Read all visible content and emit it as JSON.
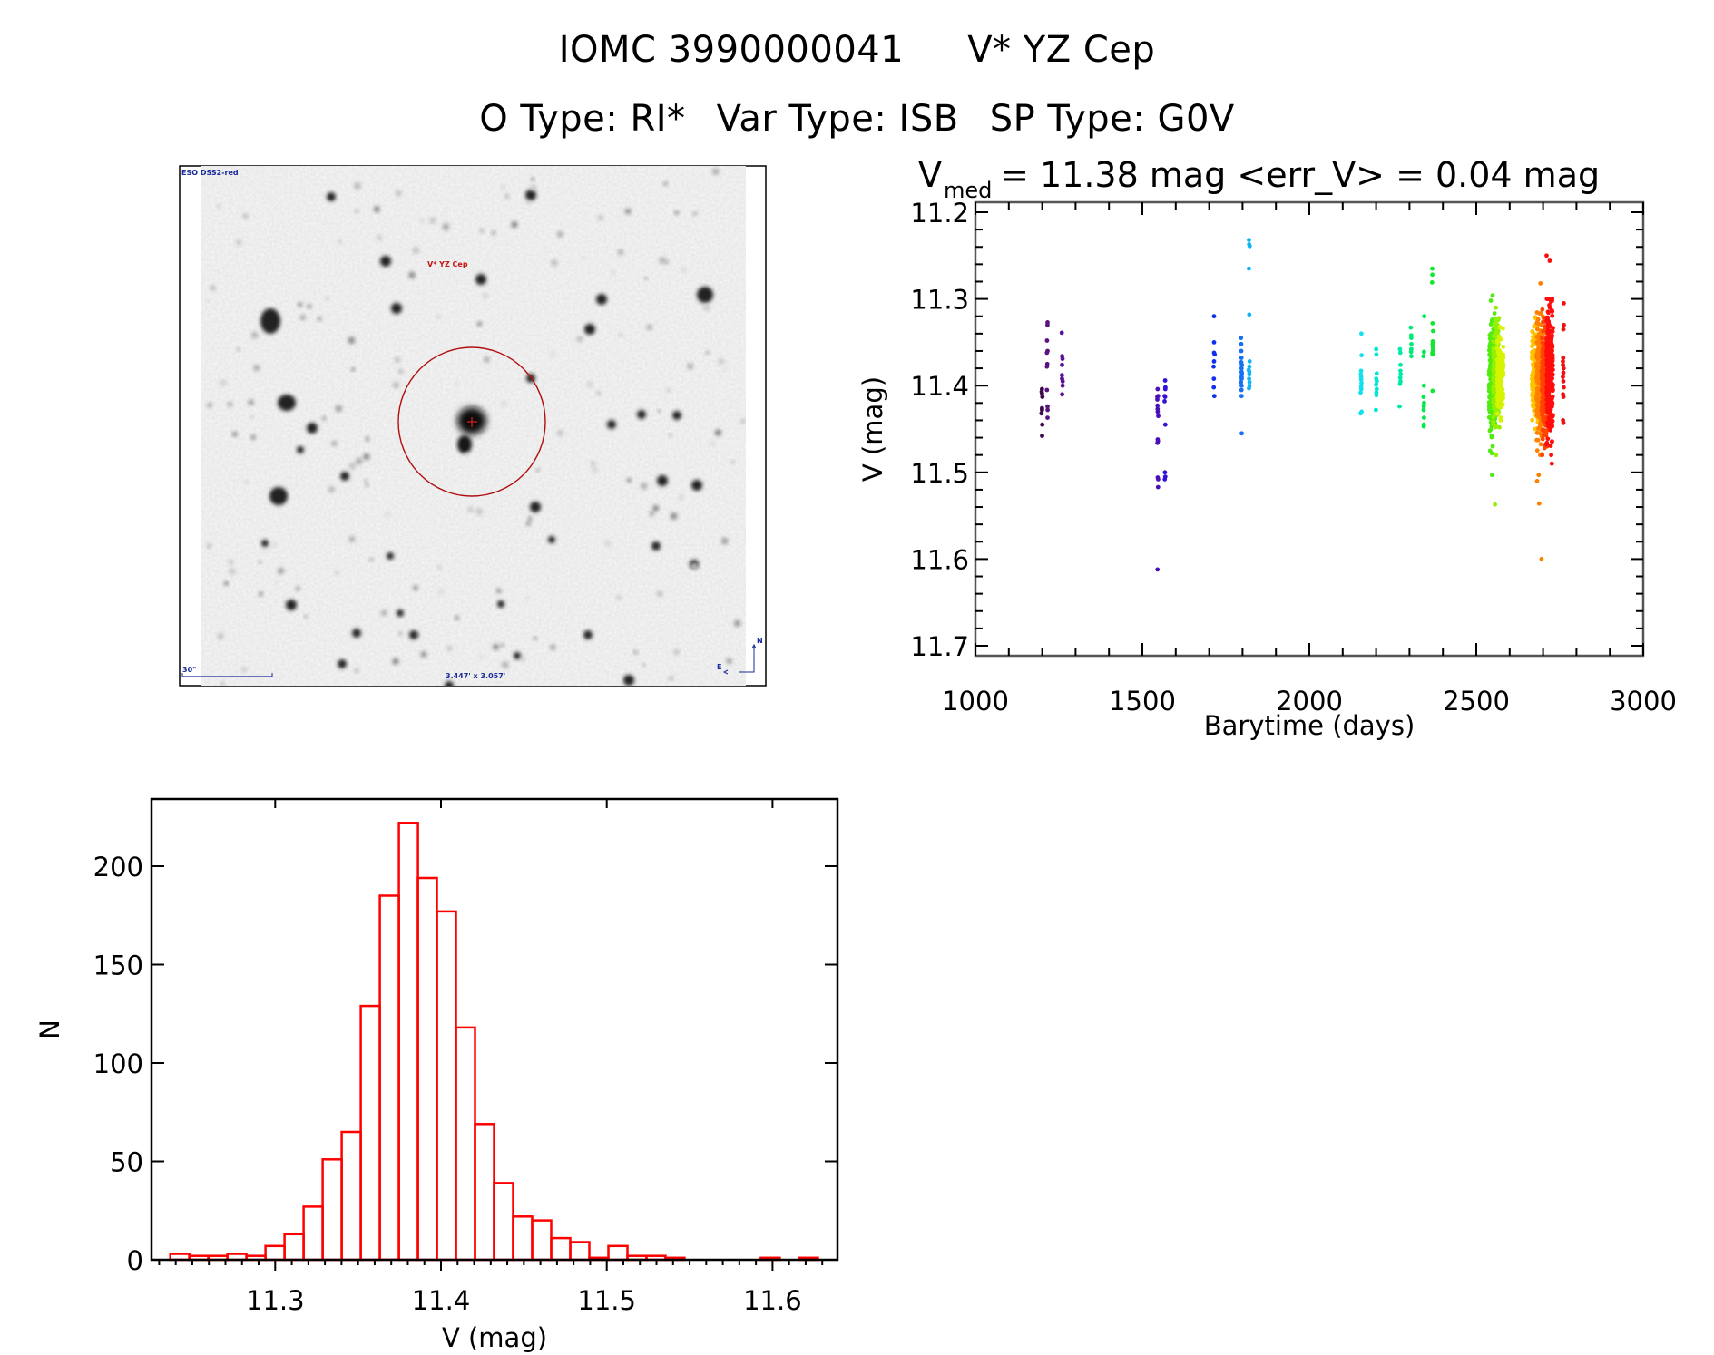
{
  "header": {
    "id_label": "IOMC 3990000041",
    "star_name": "V* YZ Cep",
    "o_type": "O Type: RI*",
    "var_type": "Var Type: ISB",
    "sp_type": "SP Type: G0V"
  },
  "finder_image": {
    "survey_label": "ESO DSS2-red",
    "target_label": "V* YZ Cep",
    "scale_bar_label": "30\"",
    "field_size_label": "3.447' x 3.057'",
    "east_label": "E",
    "north_label": "N",
    "colors": {
      "label": "#1a2a9a",
      "target": "#c01818"
    }
  },
  "chart_data": [
    {
      "type": "scatter",
      "title_main": "V",
      "title_sub": "med",
      "title_rest": " = 11.38 mag <err_V> = 0.04 mag",
      "xlabel": "Barytime (days)",
      "ylabel": "V (mag)",
      "xlim": [
        1000,
        3000
      ],
      "ylim": [
        11.2,
        11.72
      ],
      "y_inverted": true,
      "xticks": [
        1000,
        1500,
        2000,
        2500,
        3000
      ],
      "xtick_labels": [
        "1000",
        "1500",
        "2000",
        "2500",
        "3000"
      ],
      "yticks": [
        11.2,
        11.3,
        11.4,
        11.5,
        11.6,
        11.7
      ],
      "ytick_labels": [
        "11.2",
        "11.3",
        "11.4",
        "11.5",
        "11.6",
        "11.7"
      ],
      "color_scale": "rainbow by time",
      "groups": [
        {
          "day": 1199,
          "color": "#3c0a4c",
          "mags": [
            11.404,
            11.407,
            11.409,
            11.413,
            11.426,
            11.428,
            11.432,
            11.445,
            11.458
          ]
        },
        {
          "day": 1215,
          "color": "#5a1480",
          "mags": [
            11.327,
            11.33,
            11.348,
            11.36,
            11.362,
            11.375,
            11.378,
            11.405,
            11.424,
            11.428,
            11.437
          ]
        },
        {
          "day": 1260,
          "color": "#5c1496",
          "mags": [
            11.339,
            11.366,
            11.369,
            11.376,
            11.388,
            11.392,
            11.395,
            11.4,
            11.41
          ]
        },
        {
          "day": 1546,
          "color": "#4a10b8",
          "mags": [
            11.404,
            11.412,
            11.413,
            11.416,
            11.423,
            11.427,
            11.43,
            11.435,
            11.462,
            11.464,
            11.466,
            11.506,
            11.508,
            11.517,
            11.612
          ]
        },
        {
          "day": 1568,
          "color": "#3410d8",
          "mags": [
            11.394,
            11.402,
            11.404,
            11.412,
            11.413,
            11.418,
            11.445,
            11.5,
            11.505,
            11.508
          ]
        },
        {
          "day": 1715,
          "color": "#1030f0",
          "mags": [
            11.32,
            11.35,
            11.362,
            11.364,
            11.372,
            11.378,
            11.392,
            11.402,
            11.412
          ]
        },
        {
          "day": 1797,
          "color": "#1670f5",
          "mags": [
            11.345,
            11.352,
            11.36,
            11.368,
            11.373,
            11.376,
            11.38,
            11.384,
            11.386,
            11.39,
            11.392,
            11.396,
            11.4,
            11.405,
            11.412,
            11.455
          ]
        },
        {
          "day": 1820,
          "color": "#10b4f5",
          "mags": [
            11.232,
            11.237,
            11.239,
            11.265,
            11.318,
            11.372,
            11.378,
            11.382,
            11.384,
            11.387,
            11.392,
            11.396,
            11.4,
            11.403
          ]
        },
        {
          "day": 2155,
          "color": "#10e0f0",
          "mags": [
            11.34,
            11.365,
            11.383,
            11.387,
            11.39,
            11.393,
            11.397,
            11.401,
            11.404,
            11.408,
            11.43,
            11.432
          ]
        },
        {
          "day": 2201,
          "color": "#00e8d4",
          "mags": [
            11.358,
            11.364,
            11.386,
            11.392,
            11.395,
            11.399,
            11.404,
            11.408,
            11.411,
            11.428
          ]
        },
        {
          "day": 2272,
          "color": "#00eaa8",
          "mags": [
            11.358,
            11.362,
            11.376,
            11.383,
            11.387,
            11.391,
            11.395,
            11.398,
            11.424
          ]
        },
        {
          "day": 2305,
          "color": "#00ea78",
          "mags": [
            11.333,
            11.342,
            11.345,
            11.352,
            11.358,
            11.361,
            11.366
          ]
        },
        {
          "day": 2343,
          "color": "#00ea48",
          "mags": [
            11.32,
            11.361,
            11.366,
            11.4,
            11.413,
            11.42,
            11.424,
            11.428,
            11.437,
            11.445,
            11.447
          ]
        },
        {
          "day": 2369,
          "color": "#10e830",
          "mags": [
            11.265,
            11.272,
            11.281,
            11.328,
            11.337,
            11.349,
            11.352,
            11.356,
            11.359,
            11.362,
            11.364,
            11.406
          ]
        },
        {
          "day": 2548,
          "color": "#50ec10",
          "count": 220,
          "center": 11.39,
          "spread": 0.032,
          "min": 11.3,
          "max": 11.5,
          "outliers": [
            11.296,
            11.302,
            11.475,
            11.478,
            11.503
          ]
        },
        {
          "day": 2560,
          "color": "#94f000",
          "count": 200,
          "center": 11.39,
          "spread": 0.028,
          "min": 11.31,
          "max": 11.49,
          "outliers": [
            11.537
          ]
        },
        {
          "day": 2572,
          "color": "#d4f400",
          "count": 120,
          "center": 11.385,
          "spread": 0.025,
          "min": 11.32,
          "max": 11.44,
          "outliers": [
            11.437
          ]
        },
        {
          "day": 2676,
          "color": "#ffc400",
          "count": 160,
          "center": 11.385,
          "spread": 0.03,
          "min": 11.31,
          "max": 11.45,
          "outliers": []
        },
        {
          "day": 2690,
          "color": "#ff8000",
          "count": 220,
          "center": 11.39,
          "spread": 0.035,
          "min": 11.28,
          "max": 11.48,
          "outliers": [
            11.282,
            11.503,
            11.51,
            11.536,
            11.6
          ]
        },
        {
          "day": 2705,
          "color": "#ff4400",
          "count": 200,
          "center": 11.39,
          "spread": 0.035,
          "min": 11.31,
          "max": 11.47,
          "outliers": [
            11.472,
            11.48
          ]
        },
        {
          "day": 2720,
          "color": "#ff0c0c",
          "count": 260,
          "center": 11.385,
          "spread": 0.037,
          "min": 11.3,
          "max": 11.48,
          "outliers": [
            11.25,
            11.256,
            11.49
          ]
        },
        {
          "day": 2761,
          "color": "#f01010",
          "mags": [
            11.305,
            11.33,
            11.335,
            11.368,
            11.372,
            11.376,
            11.38,
            11.385,
            11.39,
            11.395,
            11.402,
            11.41,
            11.413,
            11.44,
            11.443
          ]
        }
      ]
    },
    {
      "type": "bar",
      "subtype": "histogram",
      "xlabel": "V (mag)",
      "ylabel": "N",
      "xlim": [
        11.2255,
        11.639
      ],
      "ylim": [
        0,
        230
      ],
      "xticks": [
        11.3,
        11.4,
        11.5,
        11.6
      ],
      "xtick_labels": [
        "11.3",
        "11.4",
        "11.5",
        "11.6"
      ],
      "yticks": [
        0,
        50,
        100,
        150,
        200
      ],
      "ytick_labels": [
        "0",
        "50",
        "100",
        "150",
        "200"
      ],
      "bin_start": 11.2367,
      "bin_width": 0.01149,
      "color": "#ff0000",
      "counts": [
        3,
        2,
        2,
        3,
        2,
        7,
        13,
        27,
        51,
        65,
        129,
        185,
        222,
        194,
        177,
        118,
        69,
        39,
        22,
        20,
        11,
        9,
        1,
        7,
        2,
        2,
        1,
        0,
        0,
        0,
        0,
        1,
        0,
        1
      ]
    }
  ]
}
